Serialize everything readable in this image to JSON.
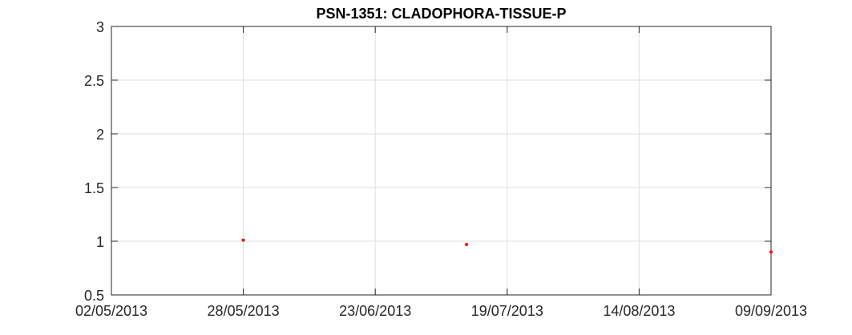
{
  "chart_data": {
    "type": "scatter",
    "title": "PSN-1351: CLADOPHORA-TISSUE-P",
    "xlabel": "",
    "ylabel": "",
    "x_axis_type": "date",
    "x_date_format": "DD/MM/YYYY",
    "xlim": [
      "02/05/2013",
      "09/09/2013"
    ],
    "ylim": [
      0.5,
      3
    ],
    "x_ticks": [
      "02/05/2013",
      "28/05/2013",
      "23/06/2013",
      "19/07/2013",
      "14/08/2013",
      "09/09/2013"
    ],
    "y_ticks": [
      "0.5",
      "1",
      "1.5",
      "2",
      "2.5",
      "3"
    ],
    "grid": true,
    "legend": false,
    "series": [
      {
        "color": "#ff0000",
        "marker": "dot",
        "points": [
          {
            "x": "28/05/2013",
            "y": 1.01
          },
          {
            "x": "11/07/2013",
            "y": 0.97
          },
          {
            "x": "09/09/2013",
            "y": 0.9
          }
        ]
      }
    ]
  },
  "colors": {
    "grid": "#dfdfdf",
    "axis": "#262626",
    "background": "#ffffff"
  }
}
